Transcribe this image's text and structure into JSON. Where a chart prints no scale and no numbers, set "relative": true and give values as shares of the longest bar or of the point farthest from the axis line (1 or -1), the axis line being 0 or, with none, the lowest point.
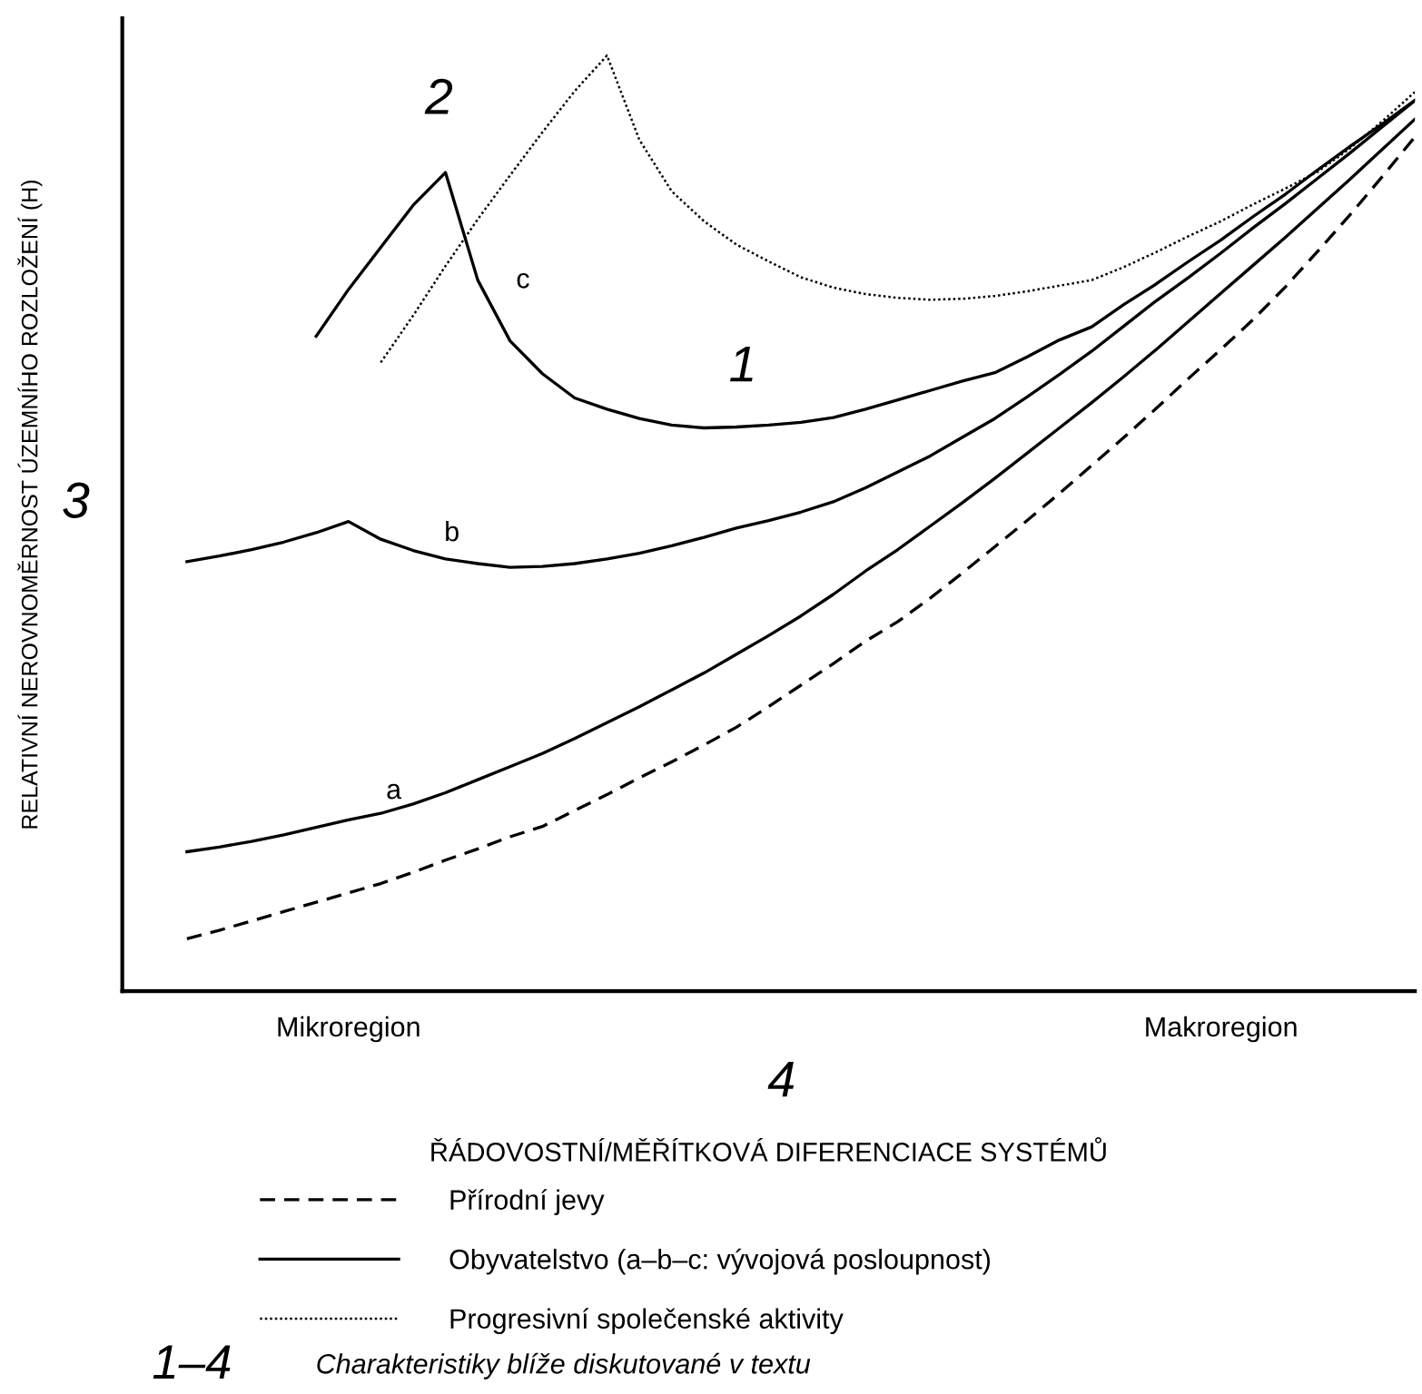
{
  "chart_data": {
    "type": "line",
    "relative": true,
    "ylabel": "RELATIVNÍ NEROVNOMĚRNOST ÚZEMNÍHO ROZLOŽENÍ (H)",
    "xlabel": "ŘÁDOVOSTNÍ/MĚŘÍTKOVÁ DIFERENCIACE SYSTÉMŮ",
    "categories": [
      null,
      null,
      null,
      null,
      null,
      null,
      null,
      "Mikroregion",
      null,
      null,
      null,
      null,
      null,
      null,
      null,
      null,
      null,
      null,
      null,
      null,
      null,
      null,
      null,
      null,
      null,
      null,
      null,
      null,
      null,
      null,
      null,
      null,
      null,
      null,
      "Makroregion",
      null,
      null,
      null,
      null,
      null,
      null
    ],
    "legend": "bottom",
    "grid": false,
    "marker": "none",
    "series": [
      {
        "name": "Přírodní jevy",
        "color": "#000000",
        "line_style": "dashed",
        "values": [
          null,
          null,
          0.056,
          0.065,
          0.075,
          0.085,
          0.095,
          0.105,
          0.115,
          0.127,
          0.14,
          0.152,
          0.165,
          0.176,
          0.193,
          0.21,
          0.228,
          0.245,
          0.263,
          0.282,
          0.304,
          0.327,
          0.35,
          0.374,
          0.395,
          0.42,
          0.447,
          0.475,
          0.503,
          0.532,
          0.562,
          0.592,
          0.623,
          0.655,
          0.686,
          0.718,
          0.753,
          0.791,
          0.83,
          0.871,
          0.913
        ]
      },
      {
        "name": "Obyvatelstvo (a–b–c: vývojová posloupnost)",
        "color": "#000000",
        "line_style": "solid",
        "values": [
          null,
          null,
          0.149,
          0.154,
          0.16,
          0.167,
          0.175,
          0.183,
          0.19,
          0.2,
          0.212,
          0.226,
          0.24,
          0.254,
          0.27,
          0.287,
          0.304,
          0.322,
          0.34,
          0.36,
          0.38,
          0.401,
          0.424,
          0.449,
          0.472,
          0.497,
          0.522,
          0.548,
          0.575,
          0.602,
          0.629,
          0.657,
          0.686,
          0.716,
          0.746,
          0.776,
          0.806,
          0.837,
          0.868,
          0.9,
          0.932
        ]
      },
      {
        "color": "#000000",
        "line_style": "solid",
        "values": [
          null,
          null,
          0.459,
          0.465,
          0.472,
          0.48,
          0.49,
          0.502,
          0.483,
          0.471,
          0.462,
          0.457,
          0.453,
          0.454,
          0.457,
          0.462,
          0.468,
          0.476,
          0.485,
          0.495,
          0.503,
          0.512,
          0.523,
          0.538,
          0.555,
          0.572,
          0.592,
          0.612,
          0.635,
          0.659,
          0.684,
          0.711,
          0.738,
          0.763,
          0.789,
          0.816,
          0.842,
          0.869,
          0.896,
          0.924,
          0.952
        ]
      },
      {
        "color": "#000000",
        "line_style": "solid",
        "values": [
          null,
          null,
          null,
          null,
          null,
          null,
          0.7,
          0.75,
          0.795,
          0.84,
          0.875,
          0.76,
          0.695,
          0.66,
          0.634,
          0.622,
          0.612,
          0.605,
          0.602,
          0.603,
          0.605,
          0.608,
          0.613,
          0.622,
          0.632,
          0.642,
          0.652,
          0.661,
          0.678,
          0.696,
          0.71,
          0.734,
          0.756,
          0.78,
          0.803,
          0.828,
          0.852,
          0.878,
          0.903,
          0.927,
          0.952
        ]
      },
      {
        "name": "Progresivní společenské aktivity",
        "color": "#000000",
        "line_style": "dotted",
        "values": [
          null,
          null,
          null,
          null,
          null,
          null,
          null,
          null,
          0.672,
          0.722,
          0.775,
          0.825,
          0.872,
          0.918,
          0.962,
          1.0,
          0.91,
          0.855,
          0.823,
          0.798,
          0.78,
          0.763,
          0.752,
          0.745,
          0.741,
          0.739,
          0.74,
          0.743,
          0.748,
          0.754,
          0.76,
          0.774,
          0.79,
          0.807,
          0.823,
          0.841,
          0.858,
          0.876,
          0.901,
          0.93,
          0.961
        ]
      }
    ],
    "annotations": [
      "a",
      "b",
      "c",
      "1",
      "2",
      "3",
      "4",
      "1–4",
      "Charakteristiky blíže diskutované v textu"
    ]
  }
}
